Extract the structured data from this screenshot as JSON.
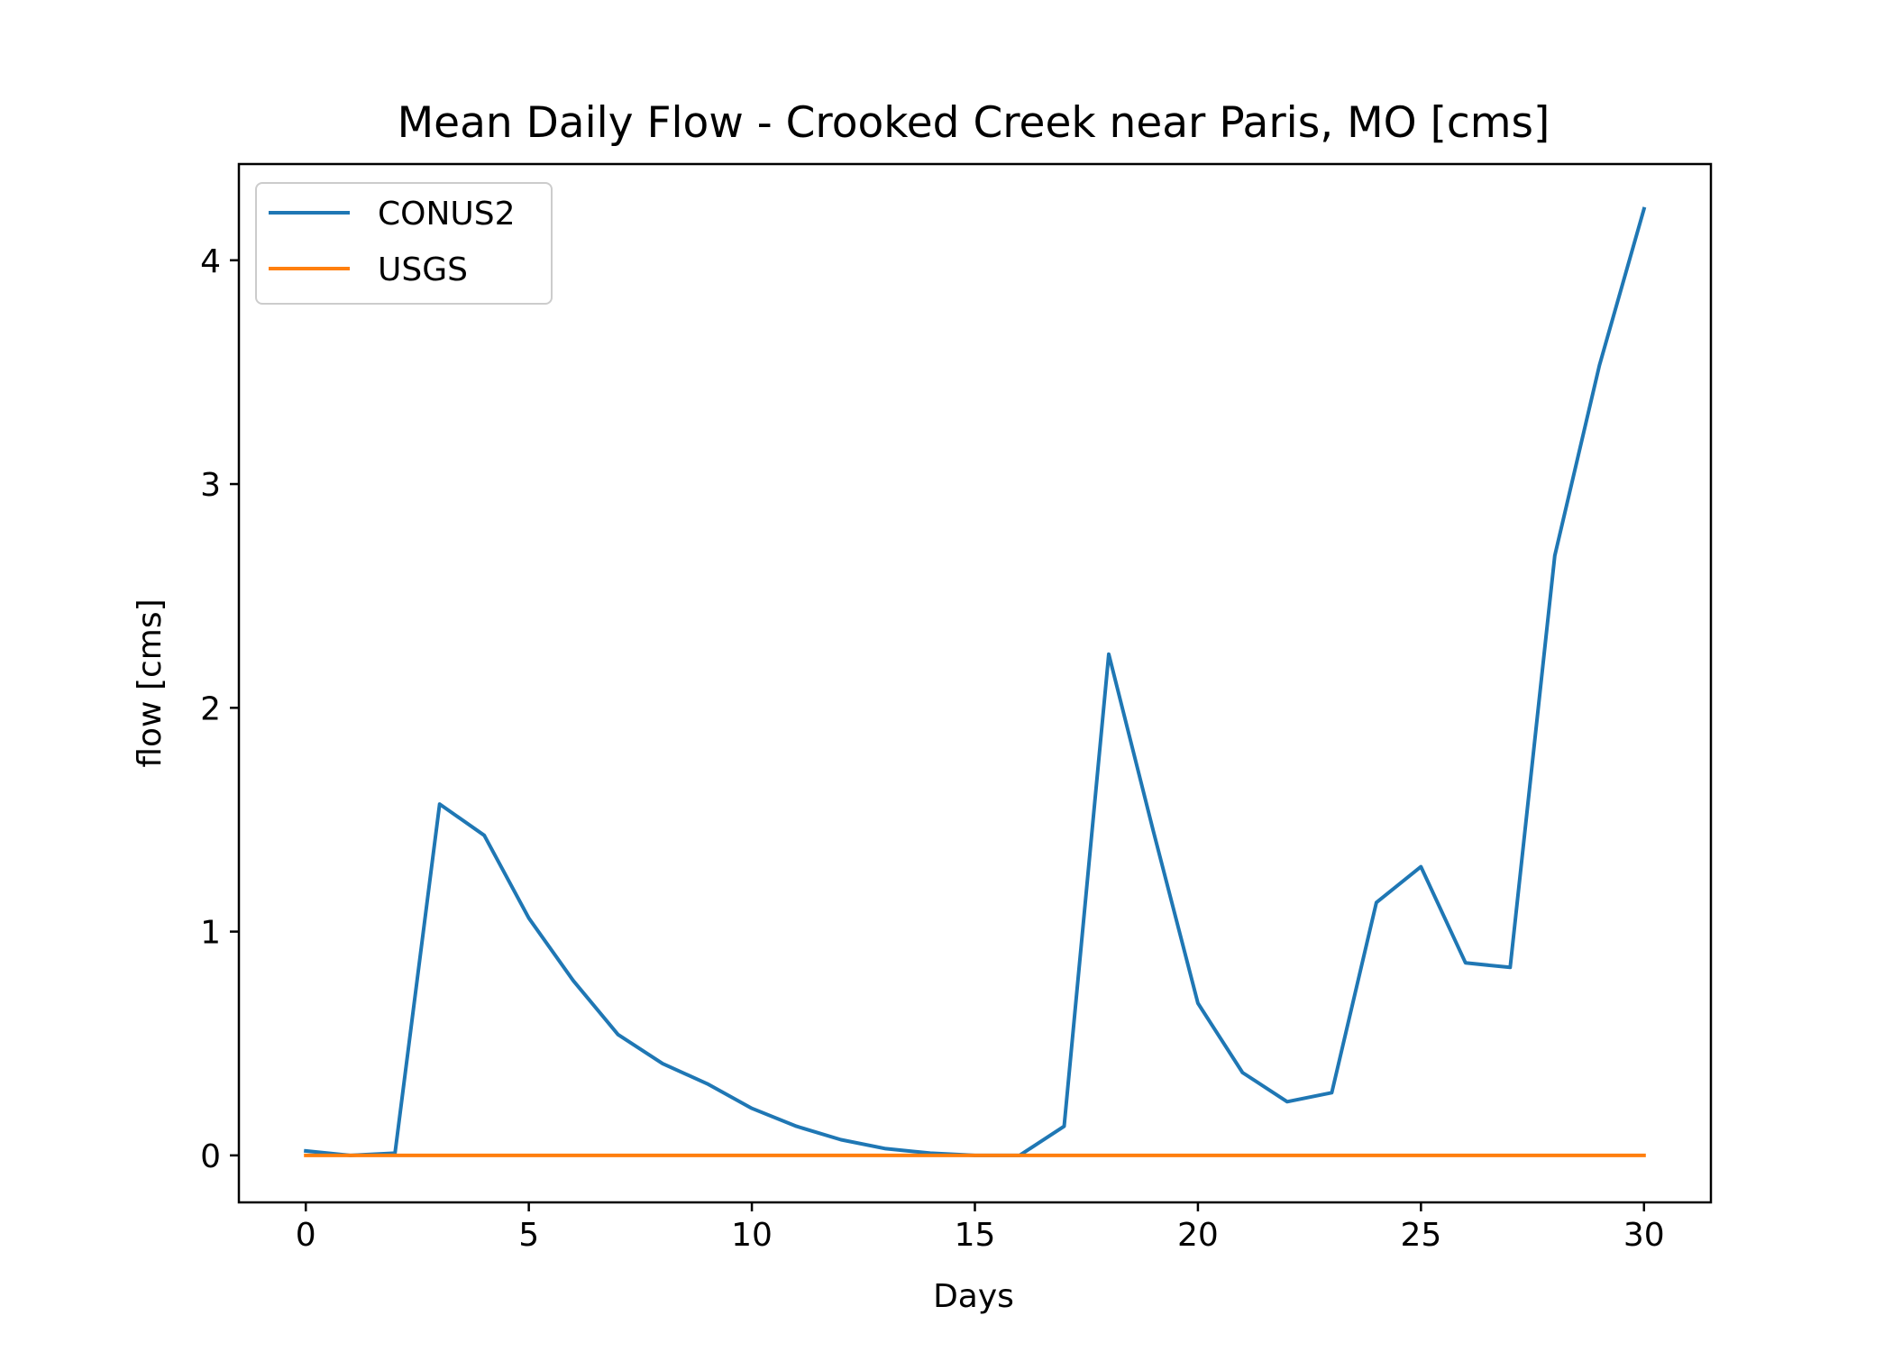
{
  "chart_data": {
    "type": "line",
    "title": "Mean Daily Flow - Crooked Creek near Paris, MO [cms]",
    "xlabel": "Days",
    "ylabel": "flow [cms]",
    "xlim": [
      -1.5,
      31.5
    ],
    "ylim": [
      -0.21,
      4.43
    ],
    "xticks": [
      0,
      5,
      10,
      15,
      20,
      25,
      30
    ],
    "yticks": [
      0,
      1,
      2,
      3,
      4
    ],
    "grid": false,
    "legend_position": "upper-left",
    "x": [
      0,
      1,
      2,
      3,
      4,
      5,
      6,
      7,
      8,
      9,
      10,
      11,
      12,
      13,
      14,
      15,
      16,
      17,
      18,
      19,
      20,
      21,
      22,
      23,
      24,
      25,
      26,
      27,
      28,
      29,
      30
    ],
    "series": [
      {
        "name": "CONUS2",
        "color": "#1f77b4",
        "values": [
          0.02,
          0.0,
          0.01,
          1.57,
          1.43,
          1.06,
          0.78,
          0.54,
          0.41,
          0.32,
          0.21,
          0.13,
          0.07,
          0.03,
          0.01,
          0.0,
          0.0,
          0.13,
          2.24,
          1.45,
          0.68,
          0.37,
          0.24,
          0.28,
          1.13,
          1.29,
          0.86,
          0.84,
          2.68,
          3.53,
          4.23
        ]
      },
      {
        "name": "USGS",
        "color": "#ff7f0e",
        "values": [
          0,
          0,
          0,
          0,
          0,
          0,
          0,
          0,
          0,
          0,
          0,
          0,
          0,
          0,
          0,
          0,
          0,
          0,
          0,
          0,
          0,
          0,
          0,
          0,
          0,
          0,
          0,
          0,
          0,
          0,
          0
        ]
      }
    ]
  }
}
